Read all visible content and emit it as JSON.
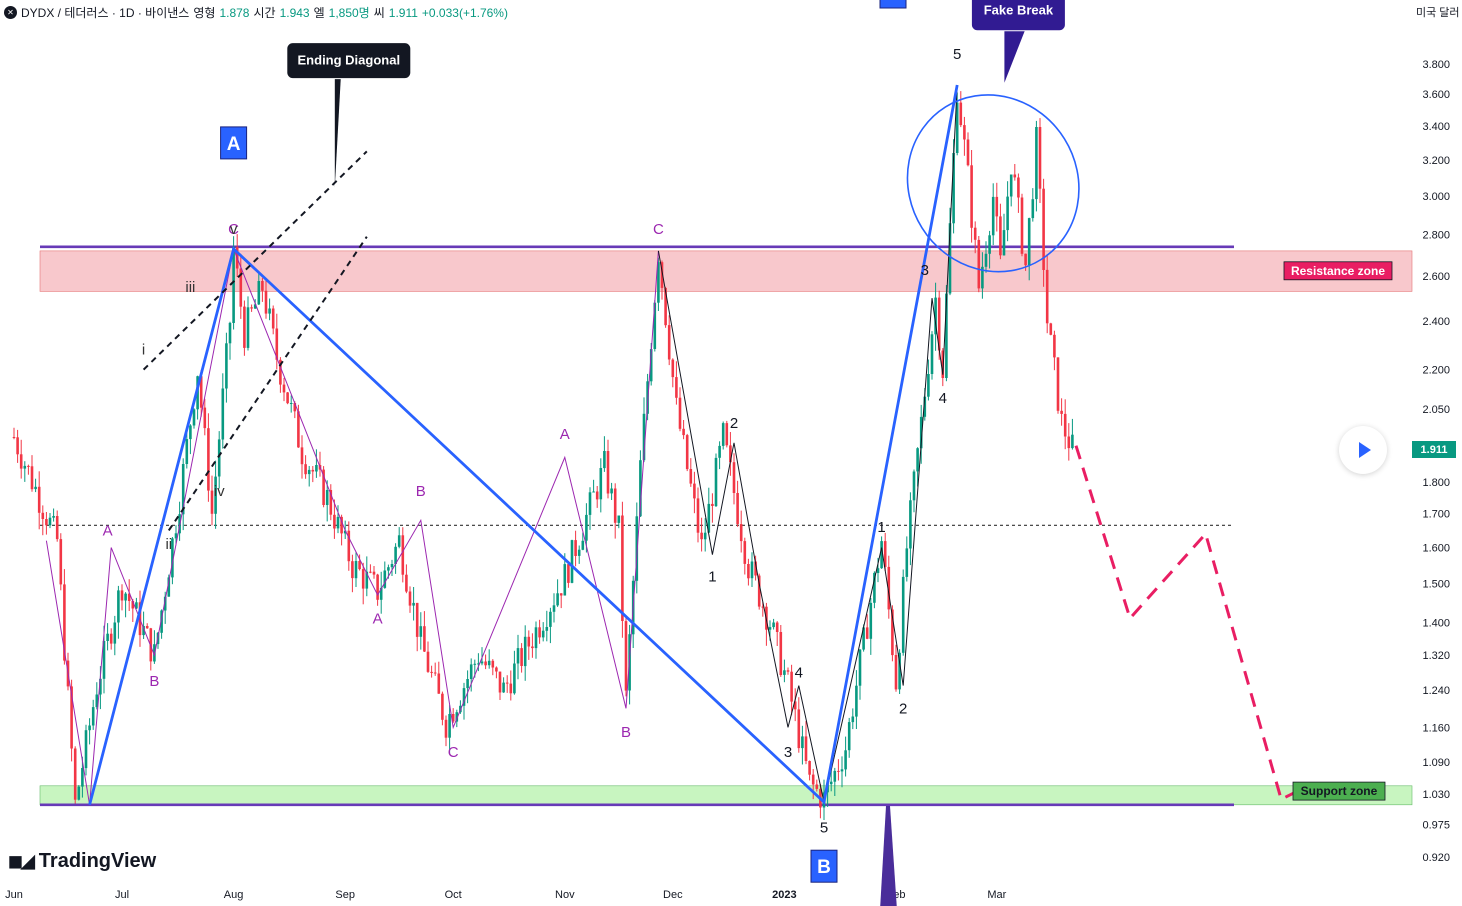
{
  "header": {
    "symbol_line": "DYDX / 테더러스 · 1D · 바이낸스",
    "open_label": "영형",
    "open": "1.878",
    "high_label": "시간",
    "high": "1.943",
    "low_label": "엘",
    "low": "1,850명",
    "close_label": "씨",
    "close": "1.911",
    "change": "+0.033(+1.76%)",
    "currency_button": "미국 달러"
  },
  "branding": {
    "logo_text": "TradingView"
  },
  "price_tag": "1.911",
  "chart_data": {
    "type": "candlestick",
    "scale": "log",
    "y_ticks": [
      3.8,
      3.6,
      3.4,
      3.2,
      3.0,
      2.8,
      2.6,
      2.4,
      2.2,
      2.05,
      1.8,
      1.7,
      1.6,
      1.5,
      1.4,
      1.32,
      1.24,
      1.16,
      1.09,
      1.03,
      0.975,
      0.92
    ],
    "y_tick_labels": [
      "3.800",
      "3.600",
      "3.400",
      "3.200",
      "3.000",
      "2.800",
      "2.600",
      "2.400",
      "2.200",
      "2.050",
      "1.800",
      "1.700",
      "1.600",
      "1.500",
      "1.400",
      "1.320",
      "1.240",
      "1.160",
      "1.090",
      "1.030",
      "0.975",
      "0.920"
    ],
    "x_labels": [
      "Jun",
      "Jul",
      "Aug",
      "Sep",
      "Oct",
      "Nov",
      "Dec",
      "2023",
      "Feb",
      "Mar"
    ],
    "x_dates": [
      "2022-06-01",
      "2022-07-01",
      "2022-08-01",
      "2022-09-01",
      "2022-10-01",
      "2022-11-01",
      "2022-12-01",
      "2023-01-01",
      "2023-02-01",
      "2023-03-01"
    ],
    "price_path": [
      [
        "2022-06-01",
        1.95
      ],
      [
        "2022-06-13",
        1.62
      ],
      [
        "2022-06-18",
        1.01
      ],
      [
        "2022-06-24",
        1.25
      ],
      [
        "2022-07-01",
        1.5
      ],
      [
        "2022-07-10",
        1.32
      ],
      [
        "2022-07-17",
        1.75
      ],
      [
        "2022-07-22",
        2.2
      ],
      [
        "2022-07-26",
        1.7
      ],
      [
        "2022-07-31",
        2.4
      ],
      [
        "2022-08-01",
        2.73
      ],
      [
        "2022-08-04",
        2.35
      ],
      [
        "2022-08-09",
        2.55
      ],
      [
        "2022-08-13",
        2.25
      ],
      [
        "2022-08-20",
        1.9
      ],
      [
        "2022-08-27",
        1.75
      ],
      [
        "2022-09-03",
        1.55
      ],
      [
        "2022-09-10",
        1.48
      ],
      [
        "2022-09-16",
        1.62
      ],
      [
        "2022-09-22",
        1.35
      ],
      [
        "2022-09-29",
        1.17
      ],
      [
        "2022-10-08",
        1.32
      ],
      [
        "2022-10-15",
        1.24
      ],
      [
        "2022-10-24",
        1.38
      ],
      [
        "2022-11-01",
        1.52
      ],
      [
        "2022-11-08",
        1.72
      ],
      [
        "2022-11-12",
        1.85
      ],
      [
        "2022-11-16",
        1.65
      ],
      [
        "2022-11-18",
        1.22
      ],
      [
        "2022-11-22",
        1.85
      ],
      [
        "2022-11-27",
        2.72
      ],
      [
        "2022-12-02",
        2.05
      ],
      [
        "2022-12-09",
        1.6
      ],
      [
        "2022-12-15",
        1.95
      ],
      [
        "2022-12-22",
        1.55
      ],
      [
        "2022-12-28",
        1.4
      ],
      [
        "2023-01-02",
        1.25
      ],
      [
        "2023-01-08",
        1.05
      ],
      [
        "2023-01-12",
        1.02
      ],
      [
        "2023-01-18",
        1.12
      ],
      [
        "2023-01-24",
        1.4
      ],
      [
        "2023-01-28",
        1.62
      ],
      [
        "2023-02-01",
        1.26
      ],
      [
        "2023-02-04",
        1.6
      ],
      [
        "2023-02-08",
        2.0
      ],
      [
        "2023-02-12",
        2.5
      ],
      [
        "2023-02-14",
        2.2
      ],
      [
        "2023-02-18",
        3.65
      ],
      [
        "2023-02-21",
        3.1
      ],
      [
        "2023-02-24",
        2.55
      ],
      [
        "2023-02-28",
        3.0
      ],
      [
        "2023-03-02",
        2.65
      ],
      [
        "2023-03-05",
        3.2
      ],
      [
        "2023-03-09",
        2.65
      ],
      [
        "2023-03-12",
        3.3
      ],
      [
        "2023-03-15",
        2.4
      ],
      [
        "2023-03-19",
        2.0
      ],
      [
        "2023-03-22",
        1.91
      ]
    ],
    "horizontal_lines": [
      {
        "price": 2.74,
        "style": "solid",
        "color": "#673ab7"
      },
      {
        "price": 1.01,
        "style": "solid",
        "color": "#673ab7"
      },
      {
        "price": 1.665,
        "style": "dotted",
        "color": "#333333"
      }
    ],
    "zones": [
      {
        "label": "Resistance zone",
        "from": 2.53,
        "to": 2.72,
        "color": "#f8c8cc"
      },
      {
        "label": "Support zone",
        "from": 1.01,
        "to": 1.045,
        "color": "#c8f5c0"
      }
    ],
    "blue_wave": [
      [
        "2022-06-22",
        1.01
      ],
      [
        "2022-08-01",
        2.73
      ],
      [
        "2023-01-12",
        1.015
      ],
      [
        "2023-02-18",
        3.66
      ]
    ],
    "purple_wave": [
      [
        "2022-06-10",
        1.62
      ],
      [
        "2022-06-22",
        1.01
      ],
      [
        "2022-06-28",
        1.6
      ],
      [
        "2022-07-10",
        1.32
      ],
      [
        "2022-08-01",
        2.73
      ],
      [
        "2022-09-01",
        1.65
      ],
      [
        "2022-09-10",
        1.47
      ],
      [
        "2022-09-22",
        1.68
      ],
      [
        "2022-10-01",
        1.16
      ],
      [
        "2022-11-01",
        1.88
      ],
      [
        "2022-11-18",
        1.2
      ],
      [
        "2022-11-27",
        2.72
      ]
    ],
    "black_wave": [
      [
        "2022-11-27",
        2.72
      ],
      [
        "2022-12-12",
        1.58
      ],
      [
        "2022-12-18",
        1.93
      ],
      [
        "2022-12-25",
        1.5
      ],
      [
        "2023-01-02",
        1.16
      ],
      [
        "2023-01-05",
        1.25
      ],
      [
        "2023-01-12",
        1.015
      ],
      [
        "2023-01-28",
        1.6
      ],
      [
        "2023-02-03",
        1.25
      ],
      [
        "2023-02-11",
        2.5
      ],
      [
        "2023-02-14",
        2.18
      ],
      [
        "2023-02-18",
        3.66
      ]
    ],
    "projection": [
      [
        "2023-03-23",
        1.92
      ],
      [
        "2023-04-07",
        1.41
      ],
      [
        "2023-04-28",
        1.64
      ],
      [
        "2023-05-19",
        1.02
      ],
      [
        "2023-05-25",
        1.04
      ]
    ],
    "ending_diagonal_lines": [
      [
        [
          "2022-07-07",
          2.2
        ],
        [
          "2022-09-07",
          3.25
        ]
      ],
      [
        [
          "2022-07-14",
          1.65
        ],
        [
          "2022-09-07",
          2.79
        ]
      ]
    ],
    "circle": {
      "center": [
        "2023-02-28",
        3.07
      ],
      "label": "Fake Break"
    },
    "wave_labels": [
      {
        "text": "C",
        "date": "2022-08-01",
        "price": 2.83,
        "color": "#9c27b0"
      },
      {
        "text": "v",
        "date": "2022-08-01",
        "price": 2.83,
        "color": "#333333"
      },
      {
        "text": "iii",
        "date": "2022-07-20",
        "price": 2.55,
        "color": "#333333"
      },
      {
        "text": "i",
        "date": "2022-07-07",
        "price": 2.28,
        "color": "#333333"
      },
      {
        "text": "iv",
        "date": "2022-07-28",
        "price": 1.77,
        "color": "#333333"
      },
      {
        "text": "ii",
        "date": "2022-07-14",
        "price": 1.61,
        "color": "#333333"
      },
      {
        "text": "A",
        "date": "2022-06-27",
        "price": 1.65,
        "color": "#9c27b0"
      },
      {
        "text": "B",
        "date": "2022-07-10",
        "price": 1.26,
        "color": "#9c27b0"
      },
      {
        "text": "B",
        "date": "2022-09-22",
        "price": 1.77,
        "color": "#9c27b0"
      },
      {
        "text": "A",
        "date": "2022-09-10",
        "price": 1.41,
        "color": "#9c27b0"
      },
      {
        "text": "C",
        "date": "2022-10-01",
        "price": 1.11,
        "color": "#9c27b0"
      },
      {
        "text": "A",
        "date": "2022-11-01",
        "price": 1.96,
        "color": "#9c27b0"
      },
      {
        "text": "B",
        "date": "2022-11-18",
        "price": 1.15,
        "color": "#9c27b0"
      },
      {
        "text": "C",
        "date": "2022-11-27",
        "price": 2.83,
        "color": "#9c27b0"
      },
      {
        "text": "2",
        "date": "2022-12-18",
        "price": 2.0,
        "color": "#131722"
      },
      {
        "text": "1",
        "date": "2022-12-12",
        "price": 1.52,
        "color": "#131722"
      },
      {
        "text": "4",
        "date": "2023-01-05",
        "price": 1.28,
        "color": "#131722"
      },
      {
        "text": "3",
        "date": "2023-01-02",
        "price": 1.11,
        "color": "#131722"
      },
      {
        "text": "5",
        "date": "2023-01-12",
        "price": 0.97,
        "color": "#131722"
      },
      {
        "text": "1",
        "date": "2023-01-28",
        "price": 1.66,
        "color": "#131722"
      },
      {
        "text": "2",
        "date": "2023-02-03",
        "price": 1.2,
        "color": "#131722"
      },
      {
        "text": "3",
        "date": "2023-02-09",
        "price": 2.63,
        "color": "#131722"
      },
      {
        "text": "4",
        "date": "2023-02-14",
        "price": 2.09,
        "color": "#131722"
      },
      {
        "text": "5",
        "date": "2023-02-18",
        "price": 3.87,
        "color": "#131722"
      }
    ],
    "corner_labels": [
      {
        "text": "A",
        "date": "2022-08-01",
        "price": 3.3
      },
      {
        "text": "B",
        "date": "2023-01-12",
        "price": 0.905
      }
    ],
    "callouts": [
      {
        "text": "Ending Diagonal",
        "date": "2022-09-02",
        "price": 3.83
      },
      {
        "text": "Fake Break",
        "date": "2023-03-07",
        "price": 4.15
      }
    ]
  }
}
